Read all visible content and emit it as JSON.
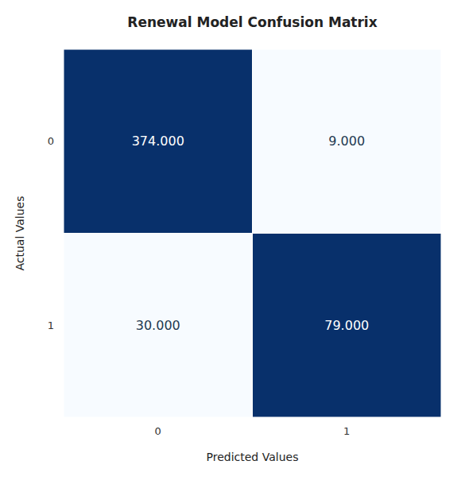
{
  "chart_data": {
    "type": "heatmap",
    "title": "Renewal Model Confusion Matrix",
    "xlabel": "Predicted Values",
    "ylabel": "Actual Values",
    "x_categories": [
      "0",
      "1"
    ],
    "y_categories": [
      "0",
      "1"
    ],
    "values": [
      [
        374,
        9
      ],
      [
        30,
        79
      ]
    ],
    "value_labels": [
      [
        "374.000",
        "9.000"
      ],
      [
        "30.000",
        "79.000"
      ]
    ],
    "data_labels": true
  }
}
